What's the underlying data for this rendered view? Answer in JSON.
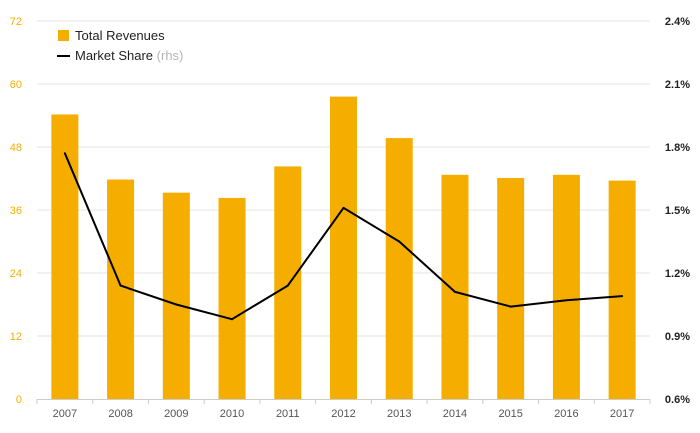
{
  "chart_data": {
    "type": "bar",
    "categories": [
      "2007",
      "2008",
      "2009",
      "2010",
      "2011",
      "2012",
      "2013",
      "2014",
      "2015",
      "2016",
      "2017"
    ],
    "series": [
      {
        "name": "Total Revenues",
        "type": "bar",
        "axis": "left",
        "color": "#f5ae00",
        "values": [
          54.2,
          41.8,
          39.3,
          38.3,
          44.3,
          57.6,
          49.7,
          42.7,
          42.1,
          42.7,
          41.6
        ]
      },
      {
        "name": "Market Share",
        "legend_suffix": "(rhs)",
        "type": "line",
        "axis": "right",
        "color": "#000000",
        "values": [
          0.0177,
          0.0114,
          0.0105,
          0.0098,
          0.0114,
          0.0151,
          0.0135,
          0.0111,
          0.0104,
          0.0107,
          0.0109
        ]
      }
    ],
    "y_left": {
      "min": 0,
      "max": 72,
      "ticks": [
        "0",
        "12",
        "24",
        "36",
        "48",
        "60",
        "72"
      ]
    },
    "y_right": {
      "min": 0.006,
      "max": 0.024,
      "ticks": [
        "0.6%",
        "0.9%",
        "1.2%",
        "1.5%",
        "1.8%",
        "2.1%",
        "2.4%"
      ]
    },
    "grid": true,
    "legend_position": "top-left"
  }
}
